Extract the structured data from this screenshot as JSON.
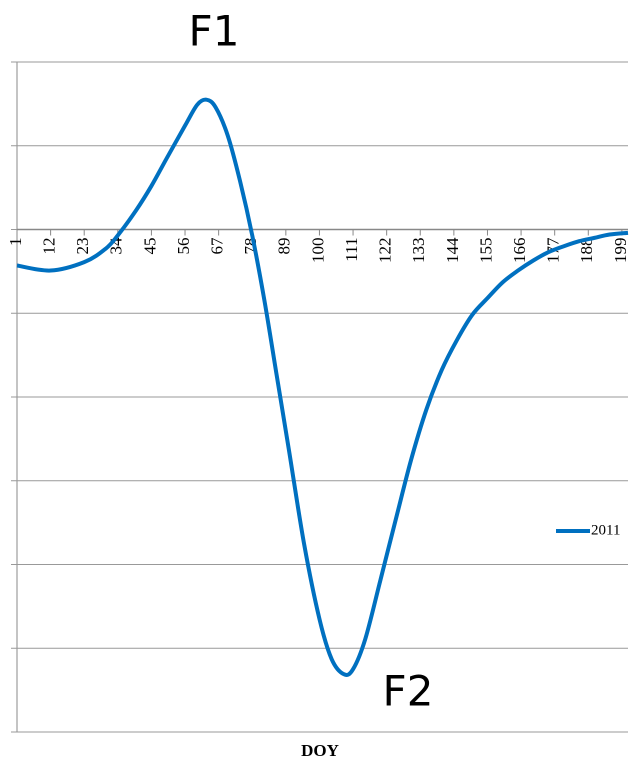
{
  "chart_data": {
    "type": "line",
    "annotations": [
      "F1",
      "F2"
    ],
    "x_label": "DOY",
    "x": [
      1,
      12,
      23,
      30,
      34,
      40,
      45,
      50,
      56,
      60,
      63,
      66,
      70,
      74,
      78,
      82,
      86,
      90,
      95,
      100,
      104,
      108,
      111,
      115,
      120,
      125,
      130,
      135,
      140,
      145,
      150,
      155,
      160,
      165,
      170,
      175,
      180,
      185,
      190,
      195,
      201
    ],
    "series": [
      {
        "name": "2011",
        "color": "#0070c0",
        "values": [
          -0.43,
          -0.49,
          -0.39,
          -0.23,
          -0.07,
          0.23,
          0.52,
          0.85,
          1.24,
          1.49,
          1.55,
          1.46,
          1.12,
          0.58,
          -0.07,
          -0.85,
          -1.74,
          -2.63,
          -3.76,
          -4.65,
          -5.13,
          -5.31,
          -5.25,
          -4.89,
          -4.18,
          -3.46,
          -2.75,
          -2.15,
          -1.68,
          -1.32,
          -1.02,
          -0.82,
          -0.63,
          -0.49,
          -0.37,
          -0.27,
          -0.2,
          -0.14,
          -0.1,
          -0.06,
          -0.04
        ]
      }
    ],
    "xlim": [
      1,
      201
    ],
    "xticks": [
      1,
      12,
      23,
      34,
      45,
      56,
      67,
      78,
      89,
      100,
      111,
      122,
      133,
      144,
      155,
      166,
      177,
      188,
      199
    ],
    "ylim": [
      -6,
      2
    ],
    "yticks": [
      -6,
      -5,
      -4,
      -3,
      -2,
      -1,
      0,
      1,
      2
    ],
    "grid": true,
    "legend": "right"
  }
}
